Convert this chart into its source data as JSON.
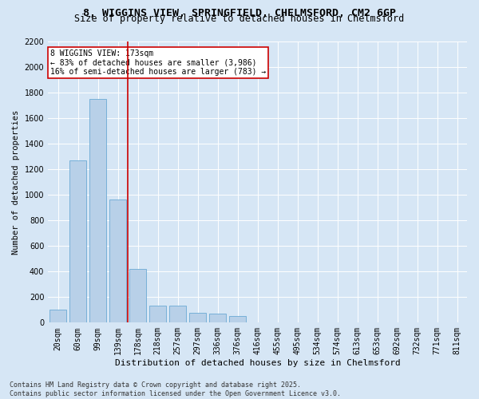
{
  "title1": "8, WIGGINS VIEW, SPRINGFIELD, CHELMSFORD, CM2 6GP",
  "title2": "Size of property relative to detached houses in Chelmsford",
  "xlabel": "Distribution of detached houses by size in Chelmsford",
  "ylabel": "Number of detached properties",
  "categories": [
    "20sqm",
    "60sqm",
    "99sqm",
    "139sqm",
    "178sqm",
    "218sqm",
    "257sqm",
    "297sqm",
    "336sqm",
    "376sqm",
    "416sqm",
    "455sqm",
    "495sqm",
    "534sqm",
    "574sqm",
    "613sqm",
    "653sqm",
    "692sqm",
    "732sqm",
    "771sqm",
    "811sqm"
  ],
  "bar_values": [
    100,
    1270,
    1750,
    960,
    420,
    130,
    130,
    75,
    70,
    50,
    0,
    0,
    0,
    0,
    0,
    0,
    0,
    0,
    0,
    0,
    0
  ],
  "bar_color": "#b8d0e8",
  "bar_edge_color": "#6aaad4",
  "highlight_index": 4,
  "highlight_color": "#cc0000",
  "ylim": [
    0,
    2200
  ],
  "yticks": [
    0,
    200,
    400,
    600,
    800,
    1000,
    1200,
    1400,
    1600,
    1800,
    2000,
    2200
  ],
  "annotation_line1": "8 WIGGINS VIEW: 173sqm",
  "annotation_line2": "← 83% of detached houses are smaller (3,986)",
  "annotation_line3": "16% of semi-detached houses are larger (783) →",
  "background_color": "#d6e6f5",
  "plot_bg_color": "#d6e6f5",
  "grid_color": "#ffffff",
  "footer_text": "Contains HM Land Registry data © Crown copyright and database right 2025.\nContains public sector information licensed under the Open Government Licence v3.0.",
  "title1_fontsize": 9.5,
  "title2_fontsize": 8.5,
  "xlabel_fontsize": 8,
  "ylabel_fontsize": 7.5,
  "annotation_fontsize": 7,
  "tick_fontsize": 7,
  "footer_fontsize": 6
}
